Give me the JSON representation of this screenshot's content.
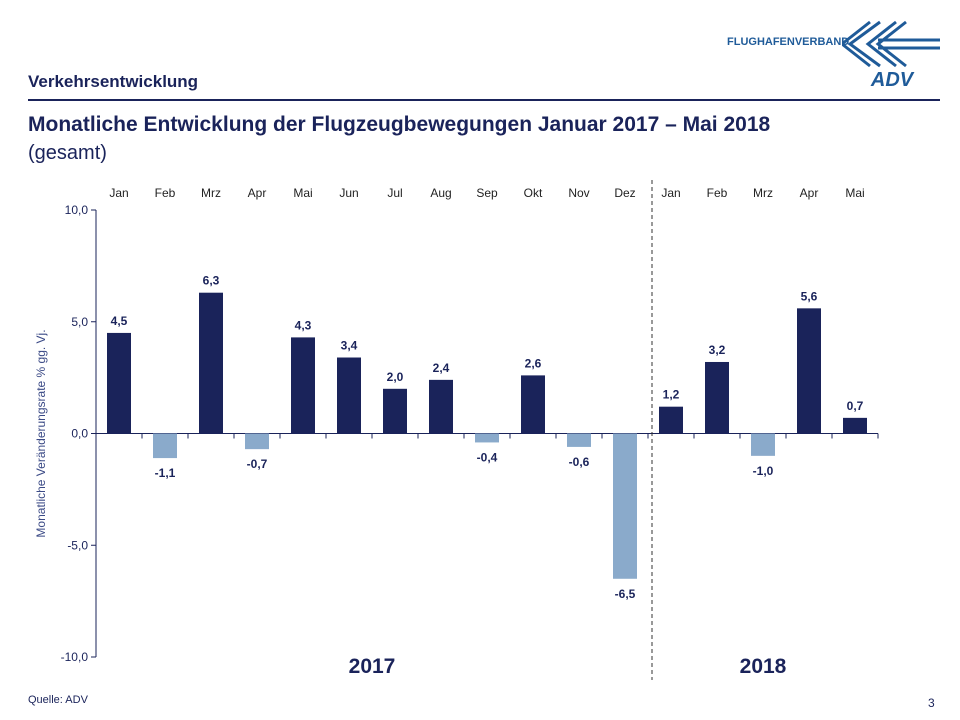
{
  "header": {
    "section": "Verkehrsentwicklung",
    "title": "Monatliche Entwicklung der Flugzeugbewegungen Januar 2017 – Mai 2018",
    "subtitle": "(gesamt)",
    "logo_text": "FLUGHAFENVERBAND",
    "logo_mark": "ADV"
  },
  "footer": {
    "source": "Quelle: ADV",
    "page": "3"
  },
  "colors": {
    "positive": "#1a235a",
    "negative": "#8aaacb",
    "text": "#1a235a"
  },
  "chart_data": {
    "type": "bar",
    "categories": [
      "Jan",
      "Feb",
      "Mrz",
      "Apr",
      "Mai",
      "Jun",
      "Jul",
      "Aug",
      "Sep",
      "Okt",
      "Nov",
      "Dez",
      "Jan",
      "Feb",
      "Mrz",
      "Apr",
      "Mai"
    ],
    "values": [
      4.5,
      -1.1,
      6.3,
      -0.7,
      4.3,
      3.4,
      2.0,
      2.4,
      -0.4,
      2.6,
      -0.6,
      -6.5,
      1.2,
      3.2,
      -1.0,
      5.6,
      0.7
    ],
    "data_labels": [
      "4,5",
      "-1,1",
      "6,3",
      "-0,7",
      "4,3",
      "3,4",
      "2,0",
      "2,4",
      "-0,4",
      "2,6",
      "-0,6",
      "-6,5",
      "1,2",
      "3,2",
      "-1,0",
      "5,6",
      "0,7"
    ],
    "groups": [
      {
        "label": "2017",
        "from": 0,
        "to": 11
      },
      {
        "label": "2018",
        "from": 12,
        "to": 16
      }
    ],
    "ylabel": "Monatliche Veränderungsrate % gg. Vj.",
    "ylim": [
      -10,
      10
    ],
    "yticks": [
      10,
      5,
      0,
      -5,
      -10
    ],
    "ytick_labels": [
      "10,0",
      "5,0",
      "0,0",
      "-5,0",
      "-10,0"
    ],
    "xaxis_position": "top",
    "grid": false
  }
}
